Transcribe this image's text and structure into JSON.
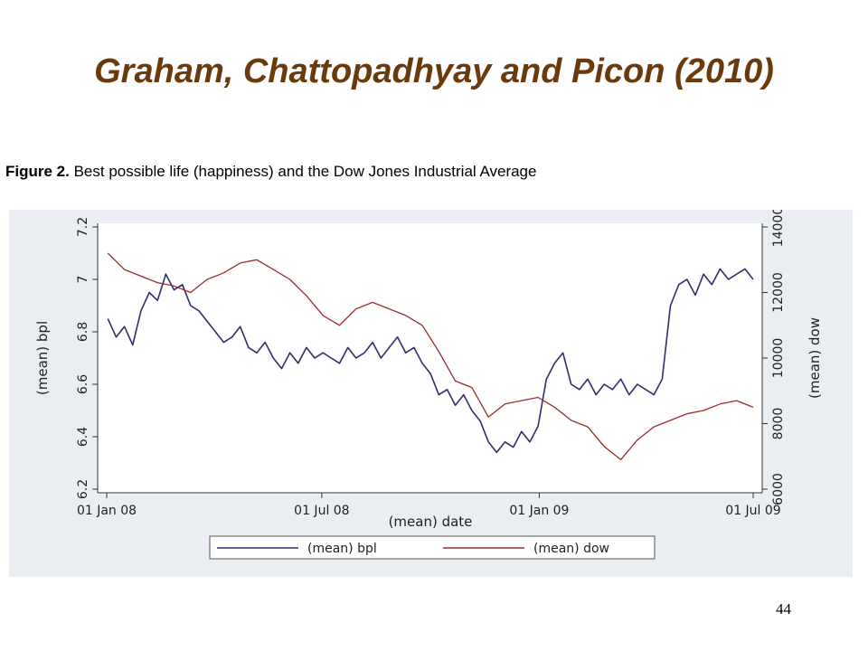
{
  "slide": {
    "title": "Graham, Chattopadhyay and Picon (2010)",
    "page_number": "44"
  },
  "figure": {
    "label": "Figure 2.",
    "caption": "Best possible life (happiness) and the Dow Jones Industrial Average"
  },
  "colors": {
    "title": "#6b3a0c",
    "bpl": "#2e2f6e",
    "dow": "#9a2b2b",
    "panel_bg": "#eaeef2",
    "plot_bg": "#ffffff"
  },
  "chart_data": {
    "type": "line",
    "xlabel": "(mean) date",
    "ylabel": "(mean) bpl",
    "y2label": "(mean) dow",
    "x_ticks": [
      "01 Jan 08",
      "01 Jul 08",
      "01 Jan 09",
      "01 Jul 09"
    ],
    "ylim": [
      6.2,
      7.2
    ],
    "y_ticks": [
      "6.2",
      "6.4",
      "6.6",
      "6.8",
      "7",
      "7.2"
    ],
    "y2lim": [
      6000,
      14000
    ],
    "y2_ticks": [
      "6000",
      "8000",
      "10000",
      "12000",
      "14000"
    ],
    "legend": [
      "(mean) bpl",
      "(mean) dow"
    ],
    "legend_position": "bottom",
    "series": [
      {
        "name": "(mean) bpl",
        "axis": "left",
        "x": [
          "2008-01-02",
          "2008-01-09",
          "2008-01-16",
          "2008-01-23",
          "2008-01-30",
          "2008-02-06",
          "2008-02-13",
          "2008-02-20",
          "2008-02-27",
          "2008-03-05",
          "2008-03-12",
          "2008-03-19",
          "2008-03-26",
          "2008-04-02",
          "2008-04-09",
          "2008-04-16",
          "2008-04-23",
          "2008-04-30",
          "2008-05-07",
          "2008-05-14",
          "2008-05-21",
          "2008-05-28",
          "2008-06-04",
          "2008-06-11",
          "2008-06-18",
          "2008-06-25",
          "2008-07-02",
          "2008-07-09",
          "2008-07-16",
          "2008-07-23",
          "2008-07-30",
          "2008-08-06",
          "2008-08-13",
          "2008-08-20",
          "2008-08-27",
          "2008-09-03",
          "2008-09-10",
          "2008-09-17",
          "2008-09-24",
          "2008-10-01",
          "2008-10-08",
          "2008-10-15",
          "2008-10-22",
          "2008-10-29",
          "2008-11-05",
          "2008-11-12",
          "2008-11-19",
          "2008-11-26",
          "2008-12-03",
          "2008-12-10",
          "2008-12-17",
          "2008-12-24",
          "2008-12-31",
          "2009-01-07",
          "2009-01-14",
          "2009-01-21",
          "2009-01-28",
          "2009-02-04",
          "2009-02-11",
          "2009-02-18",
          "2009-02-25",
          "2009-03-04",
          "2009-03-11",
          "2009-03-18",
          "2009-03-25",
          "2009-04-01",
          "2009-04-08",
          "2009-04-15",
          "2009-04-22",
          "2009-04-29",
          "2009-05-06",
          "2009-05-13",
          "2009-05-20",
          "2009-05-27",
          "2009-06-03",
          "2009-06-10",
          "2009-06-17",
          "2009-06-24",
          "2009-07-01"
        ],
        "values": [
          6.85,
          6.78,
          6.82,
          6.75,
          6.88,
          6.95,
          6.92,
          7.02,
          6.96,
          6.98,
          6.9,
          6.88,
          6.84,
          6.8,
          6.76,
          6.78,
          6.82,
          6.74,
          6.72,
          6.76,
          6.7,
          6.66,
          6.72,
          6.68,
          6.74,
          6.7,
          6.72,
          6.7,
          6.68,
          6.74,
          6.7,
          6.72,
          6.76,
          6.7,
          6.74,
          6.78,
          6.72,
          6.74,
          6.68,
          6.64,
          6.56,
          6.58,
          6.52,
          6.56,
          6.5,
          6.46,
          6.38,
          6.34,
          6.38,
          6.36,
          6.42,
          6.38,
          6.44,
          6.62,
          6.68,
          6.72,
          6.6,
          6.58,
          6.62,
          6.56,
          6.6,
          6.58,
          6.62,
          6.56,
          6.6,
          6.58,
          6.56,
          6.62,
          6.9,
          6.98,
          7.0,
          6.94,
          7.02,
          6.98,
          7.04,
          7.0,
          7.02,
          7.04,
          7.0
        ]
      },
      {
        "name": "(mean) dow",
        "axis": "right",
        "x": [
          "2008-01-02",
          "2008-01-16",
          "2008-01-30",
          "2008-02-13",
          "2008-02-27",
          "2008-03-12",
          "2008-03-26",
          "2008-04-09",
          "2008-04-23",
          "2008-05-07",
          "2008-05-21",
          "2008-06-04",
          "2008-06-18",
          "2008-07-02",
          "2008-07-16",
          "2008-07-30",
          "2008-08-13",
          "2008-08-27",
          "2008-09-10",
          "2008-09-24",
          "2008-10-08",
          "2008-10-22",
          "2008-11-05",
          "2008-11-19",
          "2008-12-03",
          "2008-12-17",
          "2008-12-31",
          "2009-01-14",
          "2009-01-28",
          "2009-02-11",
          "2009-02-25",
          "2009-03-11",
          "2009-03-25",
          "2009-04-08",
          "2009-04-22",
          "2009-05-06",
          "2009-05-20",
          "2009-06-03",
          "2009-06-17",
          "2009-07-01"
        ],
        "values": [
          13200,
          12700,
          12500,
          12300,
          12200,
          12000,
          12400,
          12600,
          12900,
          13000,
          12700,
          12400,
          11900,
          11300,
          11000,
          11500,
          11700,
          11500,
          11300,
          11000,
          10200,
          9300,
          9100,
          8200,
          8600,
          8700,
          8800,
          8500,
          8100,
          7900,
          7300,
          6900,
          7500,
          7900,
          8100,
          8300,
          8400,
          8600,
          8700,
          8500
        ]
      }
    ]
  }
}
